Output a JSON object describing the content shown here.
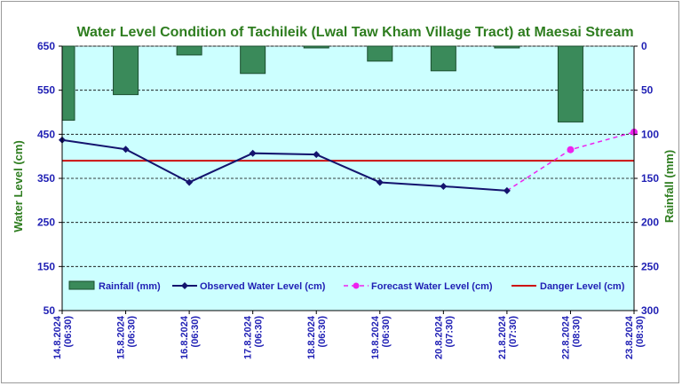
{
  "chart_data": {
    "type": "bar+line",
    "title": "Water Level Condition of Tachileik (Lwal Taw Kham Village Tract) at Maesai Stream",
    "ylabel": "Water Level (cm)",
    "y2label": "Rainfall (mm)",
    "ylim": [
      50,
      650
    ],
    "y2lim": [
      0,
      300
    ],
    "y2_inverted": true,
    "yticks": [
      50,
      150,
      250,
      350,
      450,
      550,
      650
    ],
    "y2ticks": [
      0,
      50,
      100,
      150,
      200,
      250,
      300
    ],
    "categories": [
      [
        "14.8.2024",
        "(06:30)"
      ],
      [
        "15.8.2024",
        "(06:30)"
      ],
      [
        "16.8.2024",
        "(06:30)"
      ],
      [
        "17.8.2024",
        "(06:30)"
      ],
      [
        "18.8.2024",
        "(06:30)"
      ],
      [
        "19.8.2024",
        "(06:30)"
      ],
      [
        "20.8.2024",
        "(07:30)"
      ],
      [
        "21.8.2024",
        "(07:30)"
      ],
      [
        "22.8.2024",
        "(08:30)"
      ],
      [
        "23.8.2024",
        "(08:30)"
      ]
    ],
    "series": [
      {
        "name": "Rainfall (mm)",
        "kind": "bar",
        "axis": "right",
        "color": "#3a8a5a",
        "values": [
          84,
          55,
          10,
          31,
          2,
          17,
          28,
          2,
          86,
          null
        ]
      },
      {
        "name": "Observed Water Level (cm)",
        "kind": "line",
        "axis": "left",
        "color": "#14146e",
        "values": [
          437,
          416,
          341,
          407,
          404,
          341,
          332,
          322,
          null,
          null
        ]
      },
      {
        "name": "Forecast Water Level (cm)",
        "kind": "dashed-line",
        "axis": "left",
        "color": "#ee22ee",
        "values": [
          null,
          null,
          null,
          null,
          null,
          null,
          null,
          322,
          415,
          455
        ]
      },
      {
        "name": "Danger Level (cm)",
        "kind": "hline",
        "axis": "left",
        "color": "#cc1111",
        "value": 390
      }
    ],
    "grid": true,
    "legend_position": "bottom-inside",
    "plot_background": "#ccffff"
  }
}
